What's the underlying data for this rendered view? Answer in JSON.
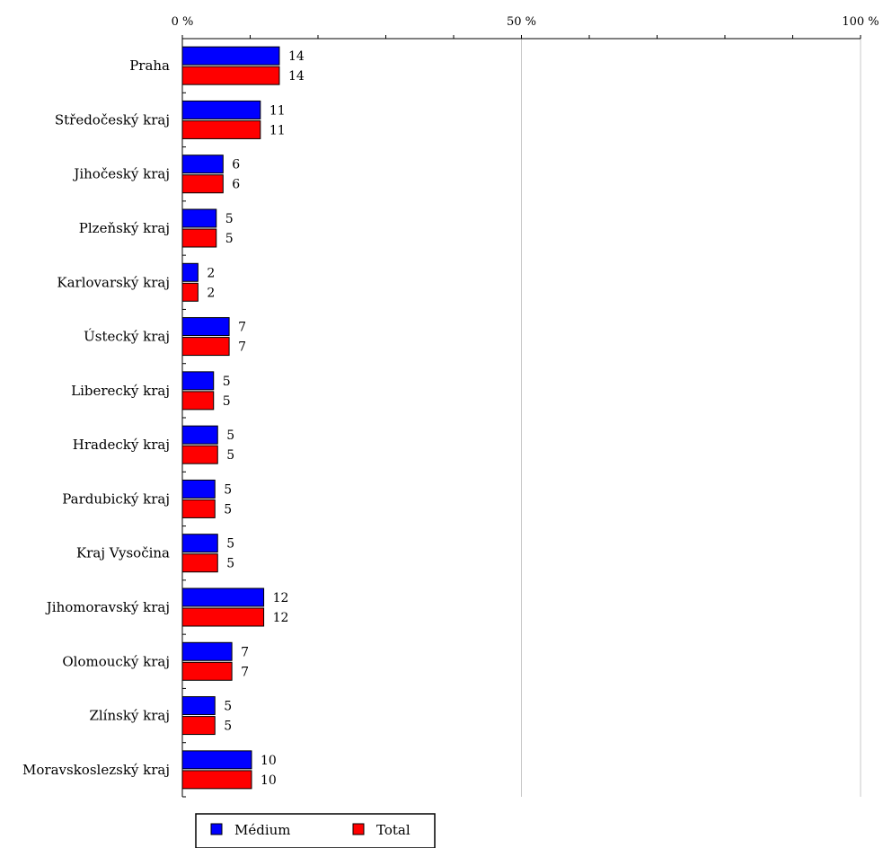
{
  "chart_data": {
    "type": "bar",
    "orientation": "horizontal",
    "categories": [
      "Praha",
      "Středočeský kraj",
      "Jihočeský kraj",
      "Plzeňský kraj",
      "Karlovarský kraj",
      "Ústecký kraj",
      "Liberecký kraj",
      "Hradecký kraj",
      "Pardubický kraj",
      "Kraj Vysočina",
      "Jihomoravský kraj",
      "Olomoucký kraj",
      "Zlínský kraj",
      "Moravskoslezský kraj"
    ],
    "series": [
      {
        "name": "Médium",
        "color": "#0000ff",
        "values": [
          14.3,
          11.5,
          6.0,
          5.0,
          2.3,
          6.9,
          4.6,
          5.2,
          4.8,
          5.2,
          12.0,
          7.3,
          4.8,
          10.2
        ],
        "labels": [
          "14",
          "11",
          "6",
          "5",
          "2",
          "7",
          "5",
          "5",
          "5",
          "5",
          "12",
          "7",
          "5",
          "10"
        ]
      },
      {
        "name": "Total",
        "color": "#ff0000",
        "values": [
          14.3,
          11.5,
          6.0,
          5.0,
          2.3,
          6.9,
          4.6,
          5.2,
          4.8,
          5.2,
          12.0,
          7.3,
          4.8,
          10.2
        ],
        "labels": [
          "14",
          "11",
          "6",
          "5",
          "2",
          "7",
          "5",
          "5",
          "5",
          "5",
          "12",
          "7",
          "5",
          "10"
        ]
      }
    ],
    "xlim": [
      0,
      100
    ],
    "xticks": [
      0,
      50,
      100
    ],
    "xtick_labels": [
      "0 %",
      "50 %",
      "100 %"
    ],
    "minor_ticks_every": 10,
    "xaxis_position": "top",
    "grid": "vertical at major ticks",
    "legend_position": "bottom"
  }
}
